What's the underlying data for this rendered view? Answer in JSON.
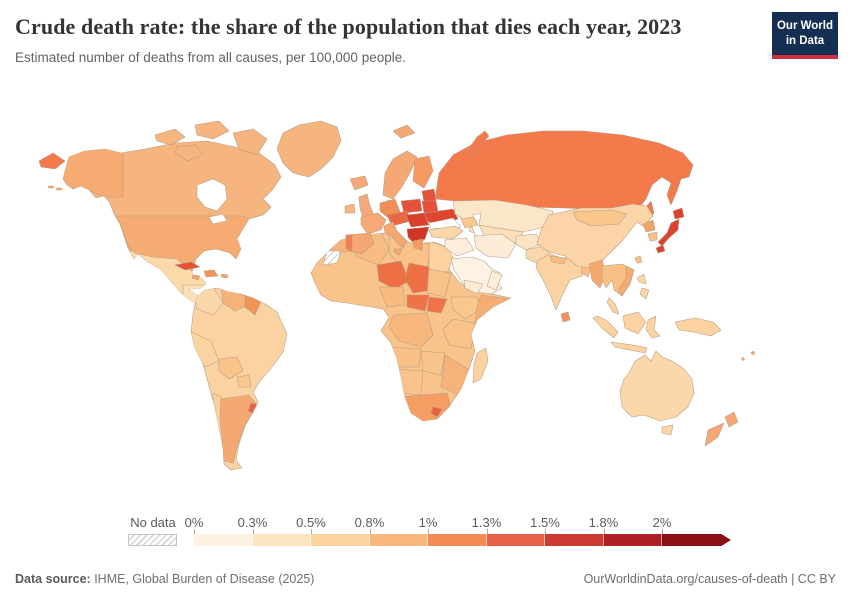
{
  "header": {
    "title": "Crude death rate: the share of the population that dies each year, 2023",
    "subtitle": "Estimated number of deaths from all causes, per 100,000 people."
  },
  "logo": {
    "line1": "Our World",
    "line2": "in Data",
    "bg": "#142f52",
    "accent": "#cf323c"
  },
  "footer": {
    "source_label": "Data source:",
    "source_value": " IHME, Global Burden of Disease (2025)",
    "right": "OurWorldinData.org/causes-of-death | CC BY"
  },
  "chart_data": {
    "type": "choropleth_map",
    "title": "Crude death rate: the share of the population that dies each year, 2023",
    "subtitle": "Estimated number of deaths from all causes, per 100,000 people.",
    "year": "2023",
    "unit": "crude death rate, % of population",
    "legend": {
      "no_data_label": "No data",
      "open_ended_upper": true,
      "bins": [
        {
          "label": "0%",
          "range": "0–0.3%",
          "color": "#fdf1e1"
        },
        {
          "label": "0.3%",
          "range": "0.3–0.5%",
          "color": "#fce4c1"
        },
        {
          "label": "0.5%",
          "range": "0.5–0.8%",
          "color": "#fbd39e"
        },
        {
          "label": "0.8%",
          "range": "0.8–1%",
          "color": "#f9b87b"
        },
        {
          "label": "1%",
          "range": "1–1.3%",
          "color": "#f58a55"
        },
        {
          "label": "1.3%",
          "range": "1.3–1.5%",
          "color": "#e76248"
        },
        {
          "label": "1.5%",
          "range": "1.5–1.8%",
          "color": "#cd3a31"
        },
        {
          "label": "1.8%",
          "range": "1.8–2%",
          "color": "#b11f26"
        },
        {
          "label": "2%",
          "range": "2%+",
          "color": "#8a1014"
        }
      ]
    },
    "regions": [
      {
        "id": "canada",
        "name": "Canada",
        "bin": "0.8–1%",
        "color": "#f6b47e"
      },
      {
        "id": "usa",
        "name": "United States",
        "bin": "0.8–1%",
        "color": "#f5ab72"
      },
      {
        "id": "greenland",
        "name": "Greenland",
        "bin": "0.8–1%",
        "color": "#f6b47e"
      },
      {
        "id": "mexico",
        "name": "Mexico",
        "bin": "0.5–0.8%",
        "color": "#fbd9a9"
      },
      {
        "id": "central-america",
        "name": "Central America",
        "bin": "0.3–0.5%",
        "color": "#fbdfb8"
      },
      {
        "id": "cuba",
        "name": "Cuba",
        "bin": "1.3–1.5%",
        "color": "#e25138"
      },
      {
        "id": "hispaniola",
        "name": "Haiti / Dominican Rep.",
        "bin": "1–1.3%",
        "color": "#f2935a"
      },
      {
        "id": "jamaica",
        "name": "Jamaica",
        "bin": "0.8–1%",
        "color": "#f4a468"
      },
      {
        "id": "caribbean-islands",
        "name": "Caribbean islands",
        "bin": "0.8–1%",
        "color": "#f4a468"
      },
      {
        "id": "colombia",
        "name": "Colombia",
        "bin": "0.5–0.8%",
        "color": "#fbd8ab"
      },
      {
        "id": "venezuela",
        "name": "Venezuela",
        "bin": "0.8–1%",
        "color": "#f7b278"
      },
      {
        "id": "guyanas",
        "name": "Guyana / Suriname",
        "bin": "1–1.3%",
        "color": "#f29458"
      },
      {
        "id": "brazil",
        "name": "Brazil",
        "bin": "0.5–0.8%",
        "color": "#fbd2a2"
      },
      {
        "id": "peru",
        "name": "Peru",
        "bin": "0.5–0.8%",
        "color": "#fbd3a0"
      },
      {
        "id": "bolivia",
        "name": "Bolivia",
        "bin": "0.5–0.8%",
        "color": "#f9c38a"
      },
      {
        "id": "paraguay",
        "name": "Paraguay",
        "bin": "0.5–0.8%",
        "color": "#f9c88f"
      },
      {
        "id": "argentina",
        "name": "Argentina",
        "bin": "0.8–1%",
        "color": "#f5a872"
      },
      {
        "id": "chile",
        "name": "Chile",
        "bin": "0.5–0.8%",
        "color": "#fbd09c"
      },
      {
        "id": "uruguay",
        "name": "Uruguay",
        "bin": "1–1.3%",
        "color": "#ea6342"
      },
      {
        "id": "iceland",
        "name": "Iceland",
        "bin": "0.8–1%",
        "color": "#f6a876"
      },
      {
        "id": "ireland",
        "name": "Ireland",
        "bin": "0.8–1%",
        "color": "#f7b47c"
      },
      {
        "id": "uk",
        "name": "United Kingdom",
        "bin": "0.8–1%",
        "color": "#f6a876"
      },
      {
        "id": "scandinavia",
        "name": "Norway / Sweden",
        "bin": "0.8–1%",
        "color": "#f5a873"
      },
      {
        "id": "finland",
        "name": "Finland",
        "bin": "1–1.3%",
        "color": "#f59a62"
      },
      {
        "id": "denmark",
        "name": "Denmark",
        "bin": "1–1.3%",
        "color": "#f08150"
      },
      {
        "id": "baltics",
        "name": "Baltic states",
        "bin": "1.3–1.5%",
        "color": "#e4523a"
      },
      {
        "id": "poland",
        "name": "Poland",
        "bin": "1.3–1.5%",
        "color": "#e4523a"
      },
      {
        "id": "germany",
        "name": "Germany",
        "bin": "1–1.3%",
        "color": "#f28d56"
      },
      {
        "id": "france",
        "name": "France",
        "bin": "0.8–1%",
        "color": "#f6a876"
      },
      {
        "id": "iberia",
        "name": "Spain",
        "bin": "0.8–1%",
        "color": "#f5a673"
      },
      {
        "id": "portugal",
        "name": "Portugal",
        "bin": "1–1.3%",
        "color": "#f28050"
      },
      {
        "id": "italy",
        "name": "Italy",
        "bin": "0.8–1%",
        "color": "#f6a671"
      },
      {
        "id": "central-europe",
        "name": "Austria / Czechia",
        "bin": "1.3–1.5%",
        "color": "#e96746"
      },
      {
        "id": "belarus",
        "name": "Belarus",
        "bin": "1.3–1.5%",
        "color": "#e4503a"
      },
      {
        "id": "ukraine",
        "name": "Ukraine",
        "bin": "1.5–1.8%",
        "color": "#e0462f"
      },
      {
        "id": "romania-hungary",
        "name": "Romania / Hungary",
        "bin": "1.5–1.8%",
        "color": "#da402e"
      },
      {
        "id": "balkans",
        "name": "Serbia / Bulgaria",
        "bin": "1.5–1.8%",
        "color": "#d23526"
      },
      {
        "id": "greece",
        "name": "Greece",
        "bin": "1–1.3%",
        "color": "#f49c64"
      },
      {
        "id": "russia",
        "name": "Russia",
        "bin": "1–1.3%",
        "color": "#f4794b"
      },
      {
        "id": "svalbard",
        "name": "Svalbard",
        "bin": "0.8–1%",
        "color": "#f5a873"
      },
      {
        "id": "kazakhstan",
        "name": "Kazakhstan",
        "bin": "0.3–0.5%",
        "color": "#fce6c8"
      },
      {
        "id": "uzbekistan-turkmenistan",
        "name": "Uzbekistan / Turkmenistan",
        "bin": "0.3–0.5%",
        "color": "#fce0bc"
      },
      {
        "id": "turkey",
        "name": "Turkey",
        "bin": "0.5–0.8%",
        "color": "#fbd8ac"
      },
      {
        "id": "caucasus",
        "name": "Caucasus",
        "bin": "0.5–0.8%",
        "color": "#f9c890"
      },
      {
        "id": "syria-iraq",
        "name": "Syria / Iraq",
        "bin": "0–0.3%",
        "color": "#fdeedd"
      },
      {
        "id": "iran",
        "name": "Iran",
        "bin": "0–0.3%",
        "color": "#fdecd8"
      },
      {
        "id": "saudi-arabia",
        "name": "Saudi Arabia",
        "bin": "0–0.3%",
        "color": "#fdf2e3"
      },
      {
        "id": "yemen",
        "name": "Yemen",
        "bin": "0.3–0.5%",
        "color": "#fcebd4"
      },
      {
        "id": "oman",
        "name": "Oman",
        "bin": "0–0.3%",
        "color": "#fceedb"
      },
      {
        "id": "afghanistan",
        "name": "Afghanistan",
        "bin": "0.3–0.5%",
        "color": "#fce4c2"
      },
      {
        "id": "pakistan",
        "name": "Pakistan",
        "bin": "0.5–0.8%",
        "color": "#fbd8ac"
      },
      {
        "id": "india",
        "name": "India",
        "bin": "0.5–0.8%",
        "color": "#fbd2a2"
      },
      {
        "id": "nepal",
        "name": "Nepal",
        "bin": "0.5–0.8%",
        "color": "#f8bc80"
      },
      {
        "id": "bangladesh",
        "name": "Bangladesh",
        "bin": "0.5–0.8%",
        "color": "#f8c084"
      },
      {
        "id": "sri-lanka",
        "name": "Sri Lanka",
        "bin": "1–1.3%",
        "color": "#f2935c"
      },
      {
        "id": "myanmar",
        "name": "Myanmar",
        "bin": "0.8–1%",
        "color": "#f5a96e"
      },
      {
        "id": "indochina",
        "name": "Thailand / Laos / Cambodia",
        "bin": "0.5–0.8%",
        "color": "#f8c085"
      },
      {
        "id": "vietnam",
        "name": "Vietnam",
        "bin": "0.8–1%",
        "color": "#f6aa70"
      },
      {
        "id": "malaysia",
        "name": "Malaysia",
        "bin": "0.5–0.8%",
        "color": "#fbd4a4"
      },
      {
        "id": "indonesia",
        "name": "Indonesia",
        "bin": "0.5–0.8%",
        "color": "#fbd4a2"
      },
      {
        "id": "philippines",
        "name": "Philippines",
        "bin": "0.5–0.8%",
        "color": "#fbd6a6"
      },
      {
        "id": "new-guinea",
        "name": "Papua New Guinea",
        "bin": "0.5–0.8%",
        "color": "#fbd2a0"
      },
      {
        "id": "taiwan",
        "name": "Taiwan",
        "bin": "0.5–0.8%",
        "color": "#f8c084"
      },
      {
        "id": "china",
        "name": "China",
        "bin": "0.5–0.8%",
        "color": "#fbd5a7"
      },
      {
        "id": "mongolia",
        "name": "Mongolia",
        "bin": "0.5–0.8%",
        "color": "#f9c68c"
      },
      {
        "id": "north-korea",
        "name": "North Korea",
        "bin": "0.8–1%",
        "color": "#f3a468"
      },
      {
        "id": "south-korea",
        "name": "South Korea",
        "bin": "0.5–0.8%",
        "color": "#f9c089"
      },
      {
        "id": "japan",
        "name": "Japan",
        "bin": "1.3–1.5%",
        "color": "#dc4232"
      },
      {
        "id": "australia",
        "name": "Australia",
        "bin": "0.5–0.8%",
        "color": "#fbd7a9"
      },
      {
        "id": "new-zealand",
        "name": "New Zealand",
        "bin": "0.8–1%",
        "color": "#f5a876"
      },
      {
        "id": "pacific-islands",
        "name": "Pacific islands",
        "bin": "0.8–1%",
        "color": "#f6a876"
      },
      {
        "id": "morocco",
        "name": "Morocco",
        "bin": "0.8–1%",
        "color": "#f6b27a"
      },
      {
        "id": "western-sahara",
        "name": "Western Sahara",
        "bin": "No data",
        "color": "url(#hatchPattern)"
      },
      {
        "id": "algeria",
        "name": "Algeria",
        "bin": "0.5–0.8%",
        "color": "#f8bc82"
      },
      {
        "id": "libya",
        "name": "Libya",
        "bin": "0.5–0.8%",
        "color": "#f9c289"
      },
      {
        "id": "egypt",
        "name": "Egypt",
        "bin": "0.5–0.8%",
        "color": "#fbd2a0"
      },
      {
        "id": "west-africa",
        "name": "West Africa",
        "bin": "0.5–0.8%",
        "color": "#f9c48c"
      },
      {
        "id": "niger",
        "name": "Niger",
        "bin": "1–1.3%",
        "color": "#ef6f45"
      },
      {
        "id": "chad",
        "name": "Chad",
        "bin": "1–1.3%",
        "color": "#ef6f45"
      },
      {
        "id": "sudan",
        "name": "Sudan",
        "bin": "0.5–0.8%",
        "color": "#f9c289"
      },
      {
        "id": "nigeria",
        "name": "Nigeria",
        "bin": "0.8–1%",
        "color": "#f8ba7e"
      },
      {
        "id": "car",
        "name": "Central African Republic",
        "bin": "1–1.3%",
        "color": "#f07248"
      },
      {
        "id": "south-sudan",
        "name": "South Sudan",
        "bin": "1–1.3%",
        "color": "#f07248"
      },
      {
        "id": "ethiopia",
        "name": "Ethiopia",
        "bin": "0.5–0.8%",
        "color": "#f9c88f"
      },
      {
        "id": "somalia",
        "name": "Somalia",
        "bin": "0.8–1%",
        "color": "#f6ac72"
      },
      {
        "id": "drc",
        "name": "DR Congo",
        "bin": "0.8–1%",
        "color": "#f6b67c"
      },
      {
        "id": "east-africa",
        "name": "Kenya / Tanzania",
        "bin": "0.5–0.8%",
        "color": "#f9c28a"
      },
      {
        "id": "angola",
        "name": "Angola",
        "bin": "0.5–0.8%",
        "color": "#f9c088"
      },
      {
        "id": "zambia-zimbabwe",
        "name": "Zambia / Zimbabwe",
        "bin": "0.5–0.8%",
        "color": "#f9c48c"
      },
      {
        "id": "mozambique",
        "name": "Mozambique",
        "bin": "0.8–1%",
        "color": "#f6b278"
      },
      {
        "id": "namibia-botswana",
        "name": "Namibia / Botswana",
        "bin": "0.5–0.8%",
        "color": "#f9c28a"
      },
      {
        "id": "south-africa",
        "name": "South Africa",
        "bin": "0.8–1%",
        "color": "#f49e64"
      },
      {
        "id": "lesotho",
        "name": "Lesotho",
        "bin": "1.3–1.5%",
        "color": "#e8603e"
      },
      {
        "id": "madagascar",
        "name": "Madagascar",
        "bin": "0.5–0.8%",
        "color": "#fbd2a0"
      }
    ]
  }
}
